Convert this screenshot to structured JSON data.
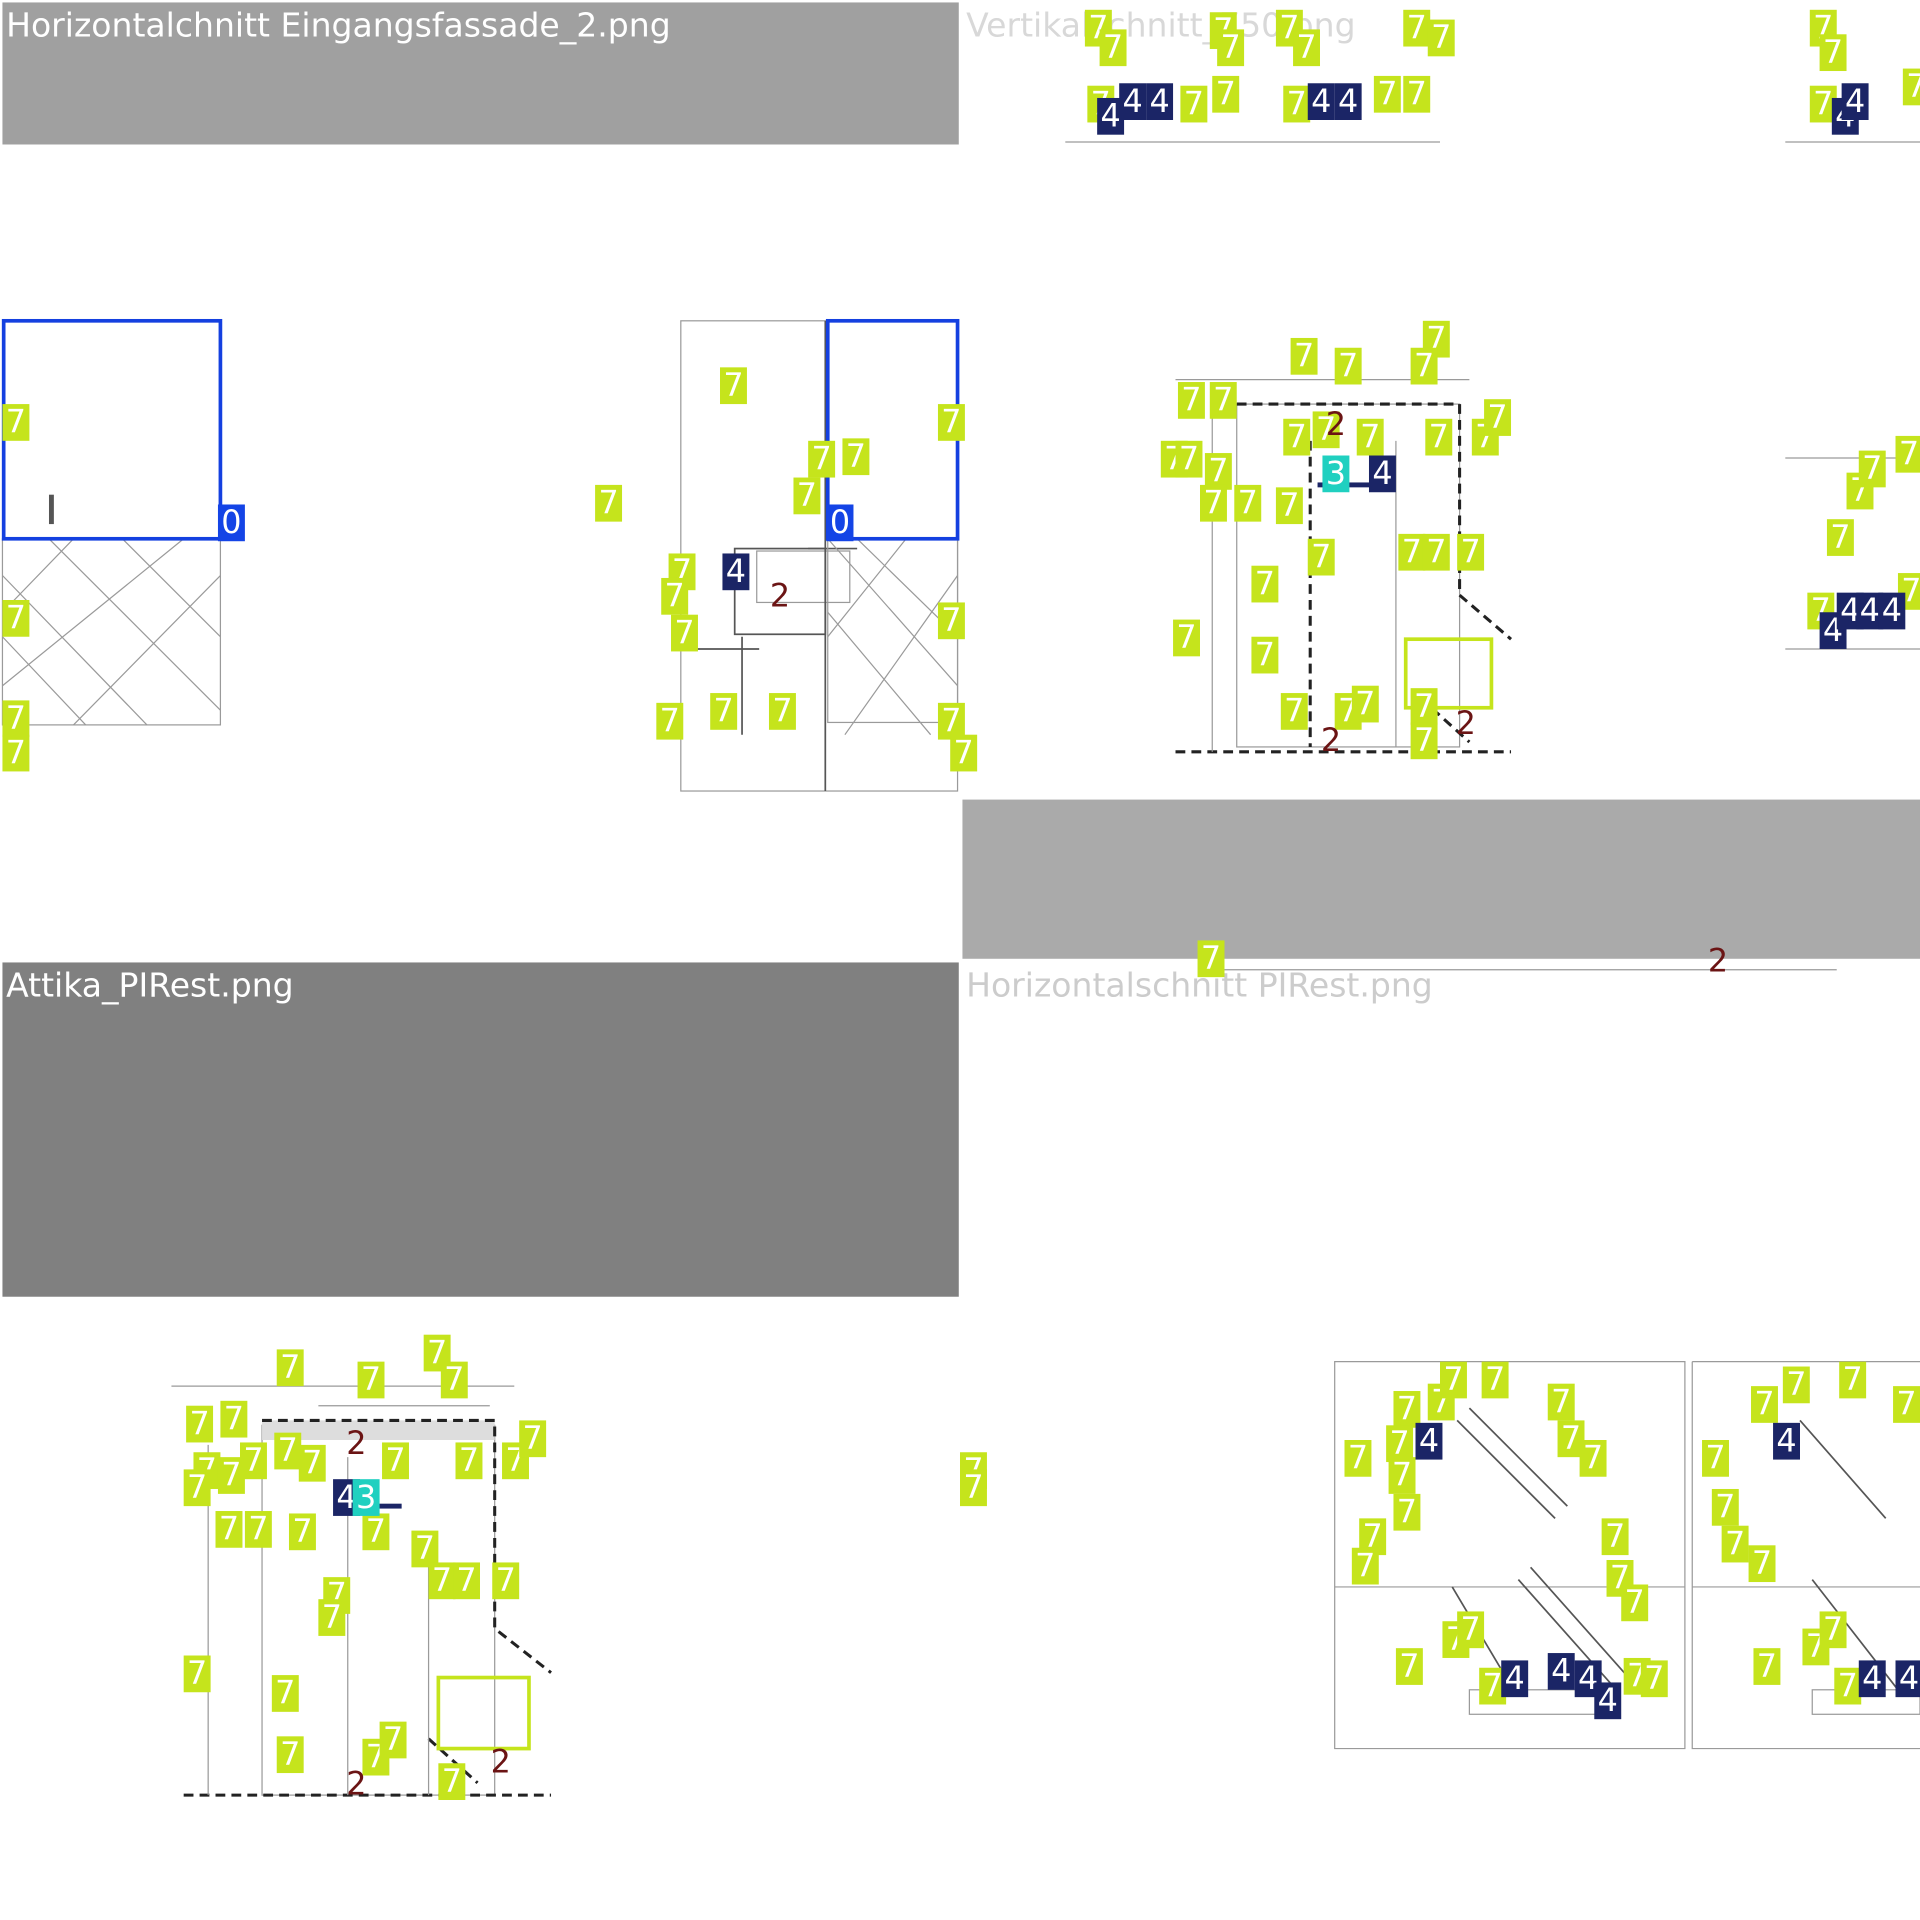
{
  "panels": [
    {
      "title": "Horizontalchnitt Eingangsfassade_2.png",
      "labels": [
        "7",
        "7",
        "7",
        "7",
        "7",
        "7",
        "7",
        "7",
        "7",
        "7",
        "7",
        "7",
        "7",
        "7",
        "7",
        "7",
        "7",
        "7",
        "7",
        "4",
        "2",
        "0",
        "0"
      ]
    },
    {
      "title": "Vertikalschnitt_750.png",
      "labels": [
        "7",
        "7",
        "7",
        "7",
        "7",
        "7",
        "7",
        "7",
        "7",
        "7",
        "7",
        "7",
        "7",
        "7",
        "7",
        "7",
        "7",
        "7",
        "7",
        "7",
        "7",
        "7",
        "7",
        "7",
        "7",
        "7",
        "7",
        "7",
        "7",
        "7",
        "7",
        "7",
        "7",
        "7",
        "7",
        "7",
        "7",
        "7",
        "7",
        "7",
        "7",
        "7",
        "7",
        "7",
        "7",
        "7",
        "7",
        "7",
        "7",
        "7",
        "7",
        "7",
        "7",
        "7",
        "7",
        "4",
        "4",
        "4",
        "4",
        "4",
        "4",
        "4",
        "4",
        "4",
        "4",
        "4",
        "4",
        "3",
        "2",
        "2",
        "2",
        "2"
      ]
    },
    {
      "title": "Attika_PIRest.png",
      "labels": [
        "7",
        "7",
        "7",
        "7",
        "7",
        "7",
        "7",
        "7",
        "7",
        "7",
        "7",
        "7",
        "7",
        "7",
        "7",
        "7",
        "7",
        "7",
        "7",
        "7",
        "7",
        "7",
        "7",
        "7",
        "7",
        "7",
        "7",
        "7",
        "7",
        "7",
        "7",
        "7",
        "7",
        "7",
        "4",
        "3",
        "2",
        "2",
        "2"
      ]
    },
    {
      "title": "Horizontalschnitt PIRest.png",
      "labels": [
        "7",
        "7",
        "7",
        "7",
        "7",
        "7",
        "7",
        "7",
        "7",
        "7",
        "7",
        "7",
        "7",
        "7",
        "7",
        "7",
        "7",
        "7",
        "7",
        "7",
        "7",
        "7",
        "7",
        "7",
        "7",
        "7",
        "7",
        "7",
        "7",
        "7",
        "7",
        "7",
        "7",
        "7",
        "4",
        "4",
        "4",
        "4",
        "4",
        "4",
        "4",
        "4"
      ]
    }
  ]
}
